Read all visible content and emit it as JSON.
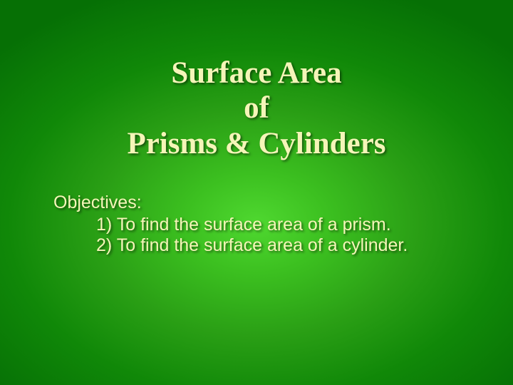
{
  "title": {
    "line1": "Surface Area",
    "line2": "of",
    "line3": "Prisms & Cylinders",
    "fontsize": 43,
    "color": "#f5f5b8",
    "font_family": "Georgia, serif",
    "font_weight": "bold"
  },
  "objectives": {
    "heading": "Objectives:",
    "items": [
      "1)  To find the surface area of a prism.",
      "2)  To find the surface area of a cylinder."
    ],
    "fontsize": 25,
    "color": "#f5f5b8",
    "font_family": "Arial, sans-serif"
  },
  "background": {
    "gradient_center": "#4fd830",
    "gradient_mid": "#2a9f15",
    "gradient_edge": "#067005"
  }
}
